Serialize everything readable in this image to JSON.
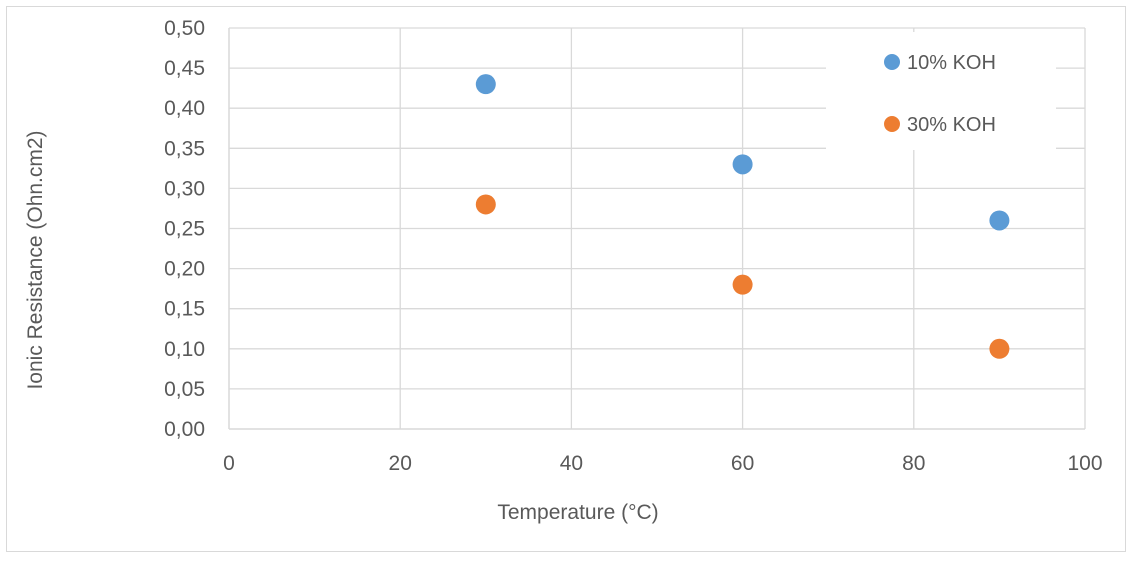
{
  "chart_data": {
    "type": "scatter",
    "xlabel": "Temperature (°C)",
    "ylabel": "Ionic Resistance (Ohn.cm2)",
    "xlim": [
      0,
      100
    ],
    "ylim": [
      0,
      0.5
    ],
    "x_ticks": [
      "0",
      "20",
      "40",
      "60",
      "80",
      "100"
    ],
    "y_ticks": [
      "0,00",
      "0,05",
      "0,10",
      "0,15",
      "0,20",
      "0,25",
      "0,30",
      "0,35",
      "0,40",
      "0,45",
      "0,50"
    ],
    "grid": true,
    "legend_position": "top-right",
    "series": [
      {
        "name": "10% KOH",
        "color": "#5B9BD5",
        "x": [
          30,
          60,
          90
        ],
        "y": [
          0.43,
          0.33,
          0.26
        ]
      },
      {
        "name": "30% KOH",
        "color": "#ED7D31",
        "x": [
          30,
          60,
          90
        ],
        "y": [
          0.28,
          0.18,
          0.1
        ]
      }
    ]
  }
}
